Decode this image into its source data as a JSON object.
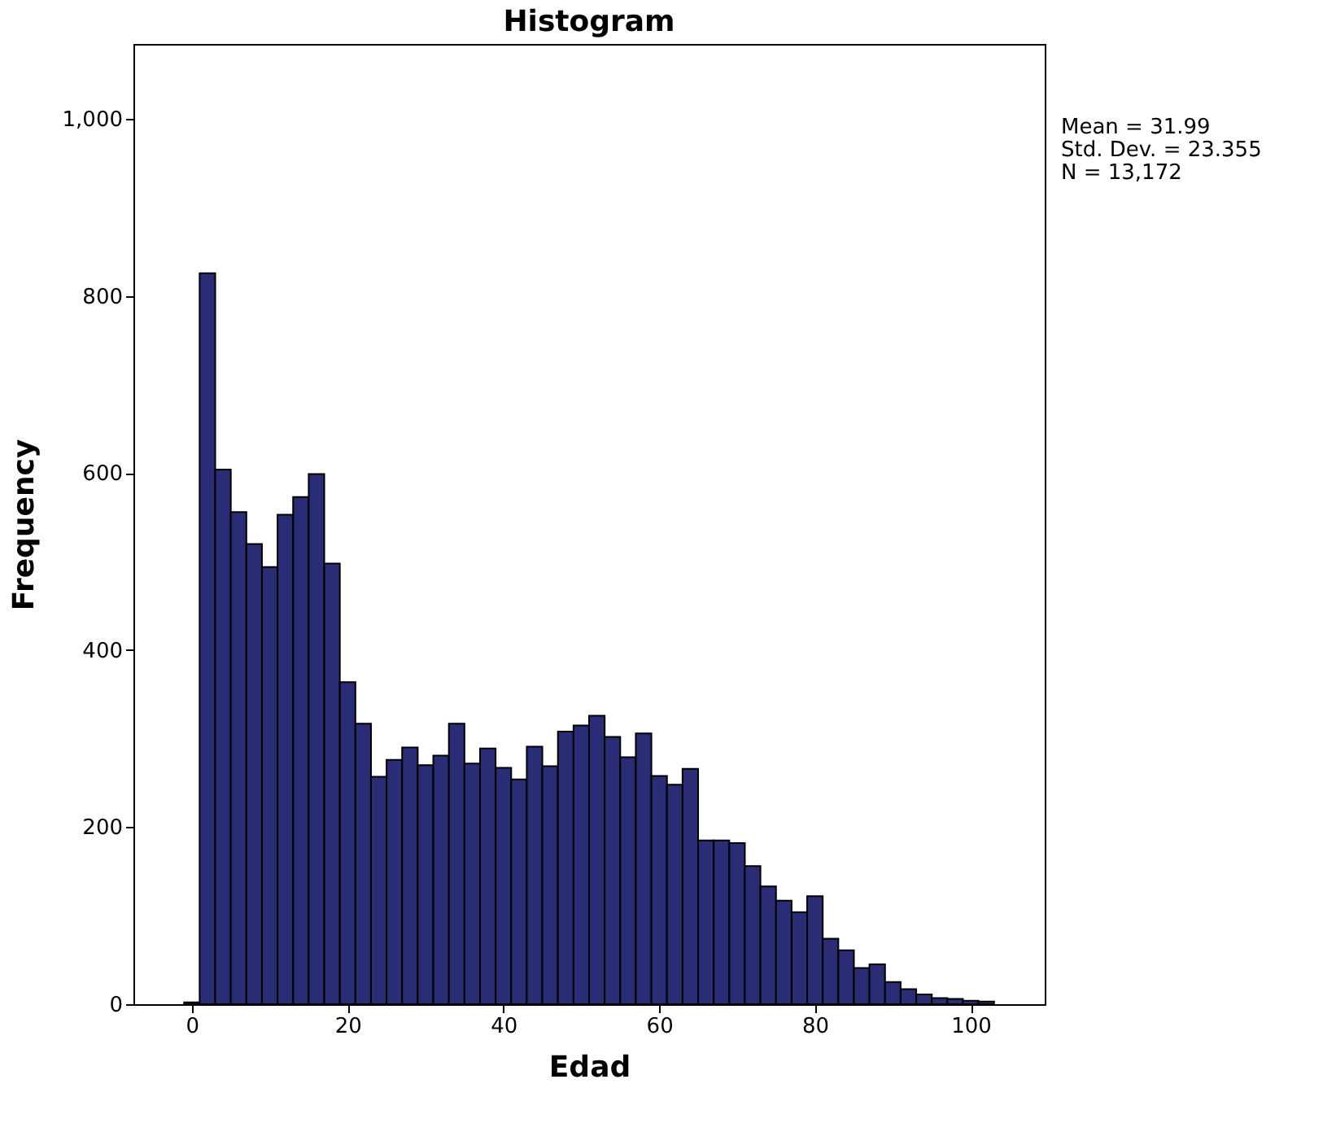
{
  "chart_data": {
    "type": "histogram",
    "title": "Histogram",
    "xlabel": "Edad",
    "ylabel": "Frequency",
    "bins": [
      -1,
      1,
      3,
      5,
      7,
      9,
      11,
      13,
      15,
      17,
      19,
      21,
      23,
      25,
      27,
      29,
      31,
      33,
      35,
      37,
      39,
      41,
      43,
      45,
      47,
      49,
      51,
      53,
      55,
      57,
      59,
      61,
      63,
      65,
      67,
      69,
      71,
      73,
      75,
      77,
      79,
      81,
      83,
      85,
      87,
      89,
      91,
      93,
      95,
      97,
      99,
      101,
      103
    ],
    "values": [
      2,
      826,
      604,
      556,
      520,
      494,
      553,
      573,
      599,
      498,
      364,
      317,
      257,
      276,
      290,
      270,
      281,
      317,
      272,
      289,
      267,
      254,
      291,
      269,
      308,
      315,
      326,
      302,
      279,
      306,
      258,
      248,
      266,
      185,
      185,
      182,
      156,
      133,
      117,
      104,
      122,
      74,
      61,
      41,
      45,
      25,
      17,
      11,
      7,
      6,
      4,
      3
    ],
    "color": "#2a2c75",
    "xlim": [
      -7.5,
      109.5
    ],
    "xticks": [
      0,
      20,
      40,
      60,
      80,
      100
    ],
    "ylim": [
      0,
      1085
    ],
    "yticks": [
      0,
      200,
      400,
      600,
      800,
      {
        "value": 1000,
        "label": "1,000"
      }
    ],
    "grid": false,
    "annotations": [
      "Mean = 31.99",
      "Std. Dev. = 23.355",
      "N = 13,172"
    ]
  }
}
